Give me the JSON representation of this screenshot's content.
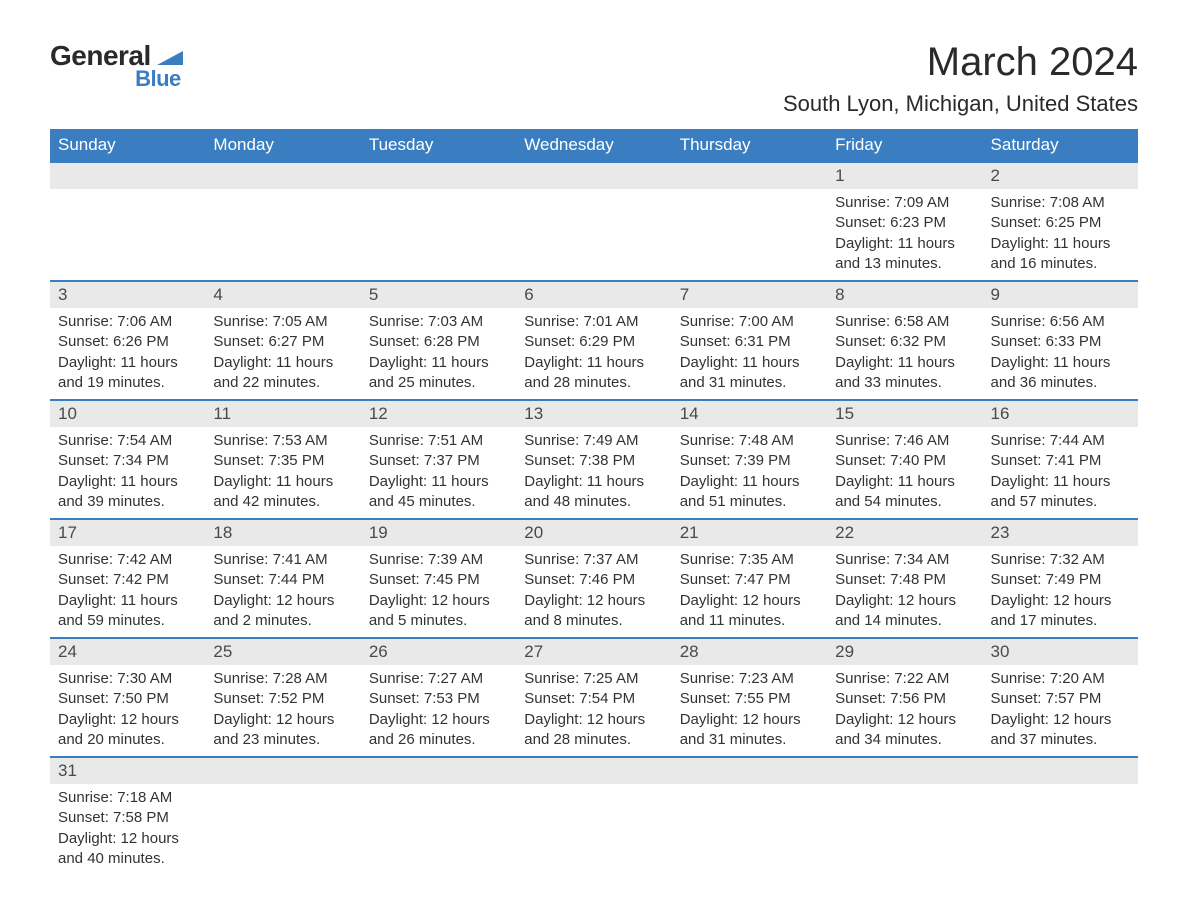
{
  "logo": {
    "main": "General",
    "sub": "Blue",
    "flag_color": "#3a7ec1"
  },
  "title": "March 2024",
  "location": "South Lyon, Michigan, United States",
  "colors": {
    "header_bg": "#3a7ec1",
    "header_text": "#ffffff",
    "daynum_bg": "#e9e9e9",
    "row_border": "#3a7ec1",
    "text": "#333333"
  },
  "weekdays": [
    "Sunday",
    "Monday",
    "Tuesday",
    "Wednesday",
    "Thursday",
    "Friday",
    "Saturday"
  ],
  "weeks": [
    [
      {
        "n": "",
        "lines": []
      },
      {
        "n": "",
        "lines": []
      },
      {
        "n": "",
        "lines": []
      },
      {
        "n": "",
        "lines": []
      },
      {
        "n": "",
        "lines": []
      },
      {
        "n": "1",
        "lines": [
          "Sunrise: 7:09 AM",
          "Sunset: 6:23 PM",
          "Daylight: 11 hours",
          "and 13 minutes."
        ]
      },
      {
        "n": "2",
        "lines": [
          "Sunrise: 7:08 AM",
          "Sunset: 6:25 PM",
          "Daylight: 11 hours",
          "and 16 minutes."
        ]
      }
    ],
    [
      {
        "n": "3",
        "lines": [
          "Sunrise: 7:06 AM",
          "Sunset: 6:26 PM",
          "Daylight: 11 hours",
          "and 19 minutes."
        ]
      },
      {
        "n": "4",
        "lines": [
          "Sunrise: 7:05 AM",
          "Sunset: 6:27 PM",
          "Daylight: 11 hours",
          "and 22 minutes."
        ]
      },
      {
        "n": "5",
        "lines": [
          "Sunrise: 7:03 AM",
          "Sunset: 6:28 PM",
          "Daylight: 11 hours",
          "and 25 minutes."
        ]
      },
      {
        "n": "6",
        "lines": [
          "Sunrise: 7:01 AM",
          "Sunset: 6:29 PM",
          "Daylight: 11 hours",
          "and 28 minutes."
        ]
      },
      {
        "n": "7",
        "lines": [
          "Sunrise: 7:00 AM",
          "Sunset: 6:31 PM",
          "Daylight: 11 hours",
          "and 31 minutes."
        ]
      },
      {
        "n": "8",
        "lines": [
          "Sunrise: 6:58 AM",
          "Sunset: 6:32 PM",
          "Daylight: 11 hours",
          "and 33 minutes."
        ]
      },
      {
        "n": "9",
        "lines": [
          "Sunrise: 6:56 AM",
          "Sunset: 6:33 PM",
          "Daylight: 11 hours",
          "and 36 minutes."
        ]
      }
    ],
    [
      {
        "n": "10",
        "lines": [
          "Sunrise: 7:54 AM",
          "Sunset: 7:34 PM",
          "Daylight: 11 hours",
          "and 39 minutes."
        ]
      },
      {
        "n": "11",
        "lines": [
          "Sunrise: 7:53 AM",
          "Sunset: 7:35 PM",
          "Daylight: 11 hours",
          "and 42 minutes."
        ]
      },
      {
        "n": "12",
        "lines": [
          "Sunrise: 7:51 AM",
          "Sunset: 7:37 PM",
          "Daylight: 11 hours",
          "and 45 minutes."
        ]
      },
      {
        "n": "13",
        "lines": [
          "Sunrise: 7:49 AM",
          "Sunset: 7:38 PM",
          "Daylight: 11 hours",
          "and 48 minutes."
        ]
      },
      {
        "n": "14",
        "lines": [
          "Sunrise: 7:48 AM",
          "Sunset: 7:39 PM",
          "Daylight: 11 hours",
          "and 51 minutes."
        ]
      },
      {
        "n": "15",
        "lines": [
          "Sunrise: 7:46 AM",
          "Sunset: 7:40 PM",
          "Daylight: 11 hours",
          "and 54 minutes."
        ]
      },
      {
        "n": "16",
        "lines": [
          "Sunrise: 7:44 AM",
          "Sunset: 7:41 PM",
          "Daylight: 11 hours",
          "and 57 minutes."
        ]
      }
    ],
    [
      {
        "n": "17",
        "lines": [
          "Sunrise: 7:42 AM",
          "Sunset: 7:42 PM",
          "Daylight: 11 hours",
          "and 59 minutes."
        ]
      },
      {
        "n": "18",
        "lines": [
          "Sunrise: 7:41 AM",
          "Sunset: 7:44 PM",
          "Daylight: 12 hours",
          "and 2 minutes."
        ]
      },
      {
        "n": "19",
        "lines": [
          "Sunrise: 7:39 AM",
          "Sunset: 7:45 PM",
          "Daylight: 12 hours",
          "and 5 minutes."
        ]
      },
      {
        "n": "20",
        "lines": [
          "Sunrise: 7:37 AM",
          "Sunset: 7:46 PM",
          "Daylight: 12 hours",
          "and 8 minutes."
        ]
      },
      {
        "n": "21",
        "lines": [
          "Sunrise: 7:35 AM",
          "Sunset: 7:47 PM",
          "Daylight: 12 hours",
          "and 11 minutes."
        ]
      },
      {
        "n": "22",
        "lines": [
          "Sunrise: 7:34 AM",
          "Sunset: 7:48 PM",
          "Daylight: 12 hours",
          "and 14 minutes."
        ]
      },
      {
        "n": "23",
        "lines": [
          "Sunrise: 7:32 AM",
          "Sunset: 7:49 PM",
          "Daylight: 12 hours",
          "and 17 minutes."
        ]
      }
    ],
    [
      {
        "n": "24",
        "lines": [
          "Sunrise: 7:30 AM",
          "Sunset: 7:50 PM",
          "Daylight: 12 hours",
          "and 20 minutes."
        ]
      },
      {
        "n": "25",
        "lines": [
          "Sunrise: 7:28 AM",
          "Sunset: 7:52 PM",
          "Daylight: 12 hours",
          "and 23 minutes."
        ]
      },
      {
        "n": "26",
        "lines": [
          "Sunrise: 7:27 AM",
          "Sunset: 7:53 PM",
          "Daylight: 12 hours",
          "and 26 minutes."
        ]
      },
      {
        "n": "27",
        "lines": [
          "Sunrise: 7:25 AM",
          "Sunset: 7:54 PM",
          "Daylight: 12 hours",
          "and 28 minutes."
        ]
      },
      {
        "n": "28",
        "lines": [
          "Sunrise: 7:23 AM",
          "Sunset: 7:55 PM",
          "Daylight: 12 hours",
          "and 31 minutes."
        ]
      },
      {
        "n": "29",
        "lines": [
          "Sunrise: 7:22 AM",
          "Sunset: 7:56 PM",
          "Daylight: 12 hours",
          "and 34 minutes."
        ]
      },
      {
        "n": "30",
        "lines": [
          "Sunrise: 7:20 AM",
          "Sunset: 7:57 PM",
          "Daylight: 12 hours",
          "and 37 minutes."
        ]
      }
    ],
    [
      {
        "n": "31",
        "lines": [
          "Sunrise: 7:18 AM",
          "Sunset: 7:58 PM",
          "Daylight: 12 hours",
          "and 40 minutes."
        ]
      },
      {
        "n": "",
        "lines": []
      },
      {
        "n": "",
        "lines": []
      },
      {
        "n": "",
        "lines": []
      },
      {
        "n": "",
        "lines": []
      },
      {
        "n": "",
        "lines": []
      },
      {
        "n": "",
        "lines": []
      }
    ]
  ]
}
